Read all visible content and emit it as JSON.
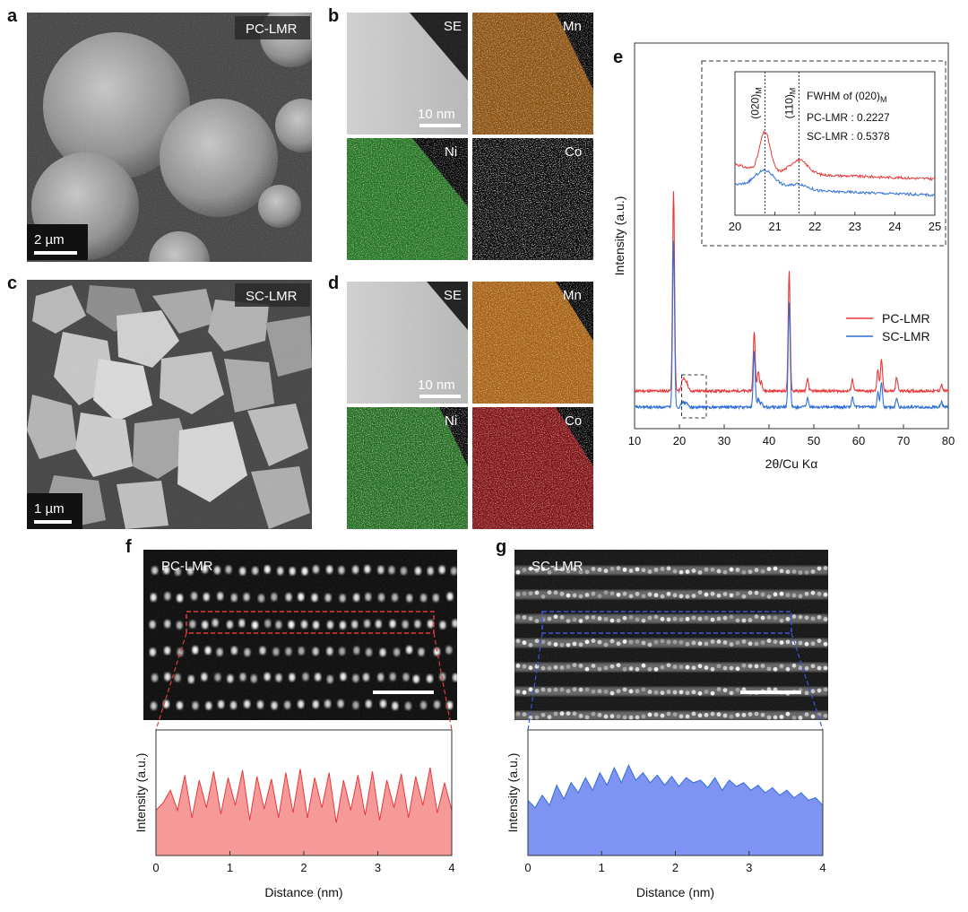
{
  "panels": {
    "a": {
      "letter": "a",
      "tag": "PC-LMR",
      "scalebar": "2 µm"
    },
    "b": {
      "letter": "b",
      "tiles": [
        "SE",
        "Mn",
        "Ni",
        "Co"
      ],
      "scalebar": "10 nm"
    },
    "c": {
      "letter": "c",
      "tag": "SC-LMR",
      "scalebar": "1 µm"
    },
    "d": {
      "letter": "d",
      "tiles": [
        "SE",
        "Mn",
        "Ni",
        "Co"
      ],
      "scalebar": "10 nm"
    },
    "e": {
      "letter": "e"
    },
    "f": {
      "letter": "f",
      "tag": "PC-LMR"
    },
    "g": {
      "letter": "g",
      "tag": "SC-LMR"
    }
  },
  "colors": {
    "pc": "#e8383a",
    "sc": "#2f6fd6",
    "pc_fill": "#f59a99",
    "sc_fill": "#7f93f2",
    "mn": "#e98b1e",
    "ni": "#3fc23a",
    "co": "#e0242a"
  },
  "chart_data": [
    {
      "id": "e",
      "type": "line",
      "xlabel": "2θ/Cu Kα",
      "ylabel": "Intensity (a.u.)",
      "xlim": [
        10,
        80
      ],
      "xticks": [
        "10",
        "20",
        "30",
        "40",
        "50",
        "60",
        "70",
        "80"
      ],
      "legend": [
        "PC-LMR",
        "SC-LMR"
      ],
      "legend_position": "middle-right",
      "peaks_2theta": [
        18.7,
        20.8,
        21.6,
        36.7,
        37.6,
        38.3,
        44.5,
        48.6,
        58.6,
        64.3,
        65.1,
        68.5,
        78.5
      ],
      "series": [
        {
          "name": "PC-LMR",
          "peak_heights": [
            100,
            6,
            4,
            30,
            10,
            5,
            60,
            6,
            6,
            11,
            16,
            7,
            3
          ]
        },
        {
          "name": "SC-LMR",
          "peak_heights": [
            100,
            3,
            2,
            33,
            5,
            3,
            62,
            5,
            6,
            9,
            15,
            6,
            3
          ]
        }
      ],
      "inset": {
        "xlim": [
          20,
          25
        ],
        "xticks": [
          "20",
          "21",
          "22",
          "23",
          "24",
          "25"
        ],
        "marker_lines": [
          20.75,
          21.6
        ],
        "marker_labels": [
          "(020)",
          "(110)"
        ],
        "marker_subscript": "M",
        "fwhm_title": "FWHM of (020)",
        "fwhm_title_sub": "M",
        "fwhm_pc": "PC-LMR : 0.2227",
        "fwhm_sc": "SC-LMR : 0.5378"
      }
    },
    {
      "id": "f",
      "type": "area",
      "xlabel": "Distance (nm)",
      "ylabel": "Intensity (a.u.)",
      "xlim": [
        0,
        4
      ],
      "xticks": [
        "0",
        "1",
        "2",
        "3",
        "4"
      ],
      "series": [
        {
          "values": [
            0.36,
            0.42,
            0.52,
            0.36,
            0.64,
            0.3,
            0.6,
            0.38,
            0.67,
            0.33,
            0.62,
            0.4,
            0.68,
            0.28,
            0.63,
            0.37,
            0.61,
            0.3,
            0.66,
            0.34,
            0.69,
            0.3,
            0.62,
            0.38,
            0.66,
            0.26,
            0.6,
            0.36,
            0.64,
            0.32,
            0.67,
            0.28,
            0.6,
            0.38,
            0.65,
            0.3,
            0.63,
            0.4,
            0.7,
            0.34,
            0.58,
            0.36
          ]
        }
      ]
    },
    {
      "id": "g",
      "type": "area",
      "xlabel": "Distance (nm)",
      "ylabel": "Intensity (a.u.)",
      "xlim": [
        0,
        4
      ],
      "xticks": [
        "0",
        "1",
        "2",
        "3",
        "4"
      ],
      "series": [
        {
          "values": [
            0.44,
            0.38,
            0.48,
            0.4,
            0.56,
            0.45,
            0.58,
            0.5,
            0.62,
            0.52,
            0.66,
            0.56,
            0.7,
            0.58,
            0.72,
            0.6,
            0.66,
            0.58,
            0.64,
            0.56,
            0.63,
            0.55,
            0.62,
            0.58,
            0.6,
            0.54,
            0.62,
            0.52,
            0.6,
            0.55,
            0.58,
            0.52,
            0.56,
            0.5,
            0.54,
            0.48,
            0.52,
            0.46,
            0.5,
            0.44,
            0.46,
            0.4
          ]
        }
      ]
    }
  ]
}
